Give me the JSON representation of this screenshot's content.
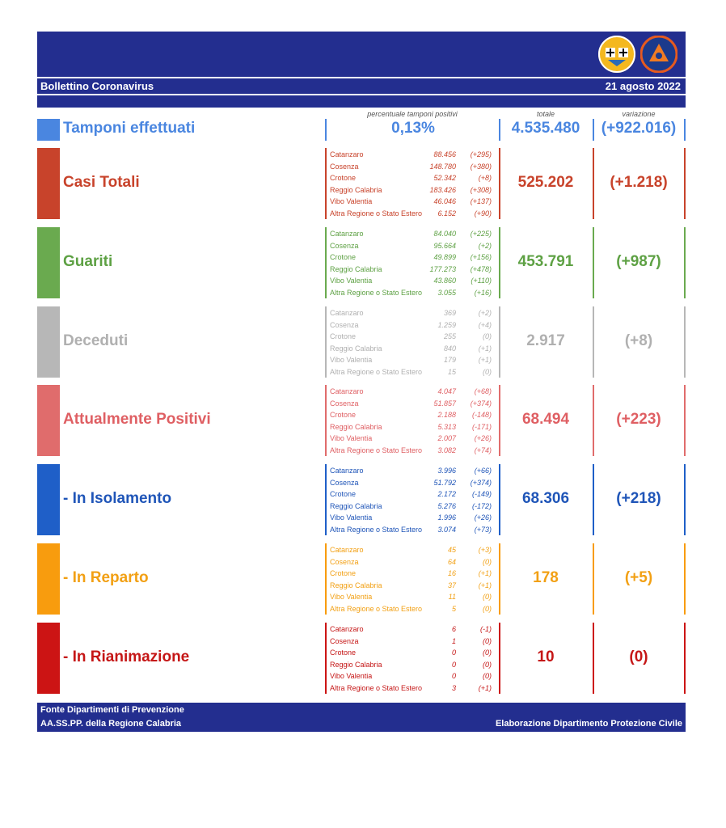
{
  "header": {
    "title": "Bollettino Coronavirus",
    "date": "21 agosto 2022"
  },
  "columns": {
    "percent_label": "percentuale tamponi positivi",
    "total_label": "totale",
    "variation_label": "variazione"
  },
  "tamponi": {
    "label": "Tamponi effettuati",
    "percent": "0,13%",
    "total": "4.535.480",
    "variation": "(+922.016)",
    "color": "#4a86e0"
  },
  "rows": [
    {
      "label": "Casi Totali",
      "color": "#c8432b",
      "textcolor": "#c8432b",
      "total": "525.202",
      "variation": "(+1.218)",
      "prov": [
        [
          "Catanzaro",
          "88.456",
          "(+295)"
        ],
        [
          "Cosenza",
          "148.780",
          "(+380)"
        ],
        [
          "Crotone",
          "52.342",
          "(+8)"
        ],
        [
          "Reggio Calabria",
          "183.426",
          "(+308)"
        ],
        [
          "Vibo Valentia",
          "46.046",
          "(+137)"
        ],
        [
          "Altra Regione o Stato Estero",
          "6.152",
          "(+90)"
        ]
      ]
    },
    {
      "label": "Guariti",
      "color": "#6aaa4f",
      "textcolor": "#5ea144",
      "total": "453.791",
      "variation": "(+987)",
      "prov": [
        [
          "Catanzaro",
          "84.040",
          "(+225)"
        ],
        [
          "Cosenza",
          "95.664",
          "(+2)"
        ],
        [
          "Crotone",
          "49.899",
          "(+156)"
        ],
        [
          "Reggio Calabria",
          "177.273",
          "(+478)"
        ],
        [
          "Vibo Valentia",
          "43.860",
          "(+110)"
        ],
        [
          "Altra Regione o Stato Estero",
          "3.055",
          "(+16)"
        ]
      ]
    },
    {
      "label": "Deceduti",
      "color": "#b7b7b7",
      "textcolor": "#b0b0b0",
      "total": "2.917",
      "variation": "(+8)",
      "prov": [
        [
          "Catanzaro",
          "369",
          "(+2)"
        ],
        [
          "Cosenza",
          "1.259",
          "(+4)"
        ],
        [
          "Crotone",
          "255",
          "(0)"
        ],
        [
          "Reggio Calabria",
          "840",
          "(+1)"
        ],
        [
          "Vibo Valentia",
          "179",
          "(+1)"
        ],
        [
          "Altra Regione o Stato Estero",
          "15",
          "(0)"
        ]
      ]
    },
    {
      "label": "Attualmente Positivi",
      "color": "#e06c6c",
      "textcolor": "#df5f63",
      "total": "68.494",
      "variation": "(+223)",
      "prov": [
        [
          "Catanzaro",
          "4.047",
          "(+68)"
        ],
        [
          "Cosenza",
          "51.857",
          "(+374)"
        ],
        [
          "Crotone",
          "2.188",
          "(-148)"
        ],
        [
          "Reggio Calabria",
          "5.313",
          "(-171)"
        ],
        [
          "Vibo Valentia",
          "2.007",
          "(+26)"
        ],
        [
          "Altra Regione o Stato Estero",
          "3.082",
          "(+74)"
        ]
      ]
    },
    {
      "label": "- In Isolamento",
      "color": "#1f5fc8",
      "textcolor": "#1f55b8",
      "total": "68.306",
      "variation": "(+218)",
      "prov": [
        [
          "Catanzaro",
          "3.996",
          "(+66)"
        ],
        [
          "Cosenza",
          "51.792",
          "(+374)"
        ],
        [
          "Crotone",
          "2.172",
          "(-149)"
        ],
        [
          "Reggio Calabria",
          "5.276",
          "(-172)"
        ],
        [
          "Vibo Valentia",
          "1.996",
          "(+26)"
        ],
        [
          "Altra Regione o Stato Estero",
          "3.074",
          "(+73)"
        ]
      ]
    },
    {
      "label": "- In Reparto",
      "color": "#f89c0e",
      "textcolor": "#f2a014",
      "total": "178",
      "variation": "(+5)",
      "prov": [
        [
          "Catanzaro",
          "45",
          "(+3)"
        ],
        [
          "Cosenza",
          "64",
          "(0)"
        ],
        [
          "Crotone",
          "16",
          "(+1)"
        ],
        [
          "Reggio Calabria",
          "37",
          "(+1)"
        ],
        [
          "Vibo Valentia",
          "11",
          "(0)"
        ],
        [
          "Altra Regione o Stato Estero",
          "5",
          "(0)"
        ]
      ]
    },
    {
      "label": "- In Rianimazione",
      "color": "#cc1414",
      "textcolor": "#c51616",
      "total": "10",
      "variation": "(0)",
      "prov": [
        [
          "Catanzaro",
          "6",
          "(-1)"
        ],
        [
          "Cosenza",
          "1",
          "(0)"
        ],
        [
          "Crotone",
          "0",
          "(0)"
        ],
        [
          "Reggio Calabria",
          "0",
          "(0)"
        ],
        [
          "Vibo Valentia",
          "0",
          "(0)"
        ],
        [
          "Altra Regione o Stato Estero",
          "3",
          "(+1)"
        ]
      ]
    }
  ],
  "footer": {
    "source_line1": "Fonte Dipartimenti di Prevenzione",
    "source_line2": "AA.SS.PP.  della Regione Calabria",
    "credit": "Elaborazione Dipartimento Protezione Civile"
  },
  "logos": {
    "region": "calabria-crest-icon",
    "civil_protection": "protezione-civile-icon"
  }
}
